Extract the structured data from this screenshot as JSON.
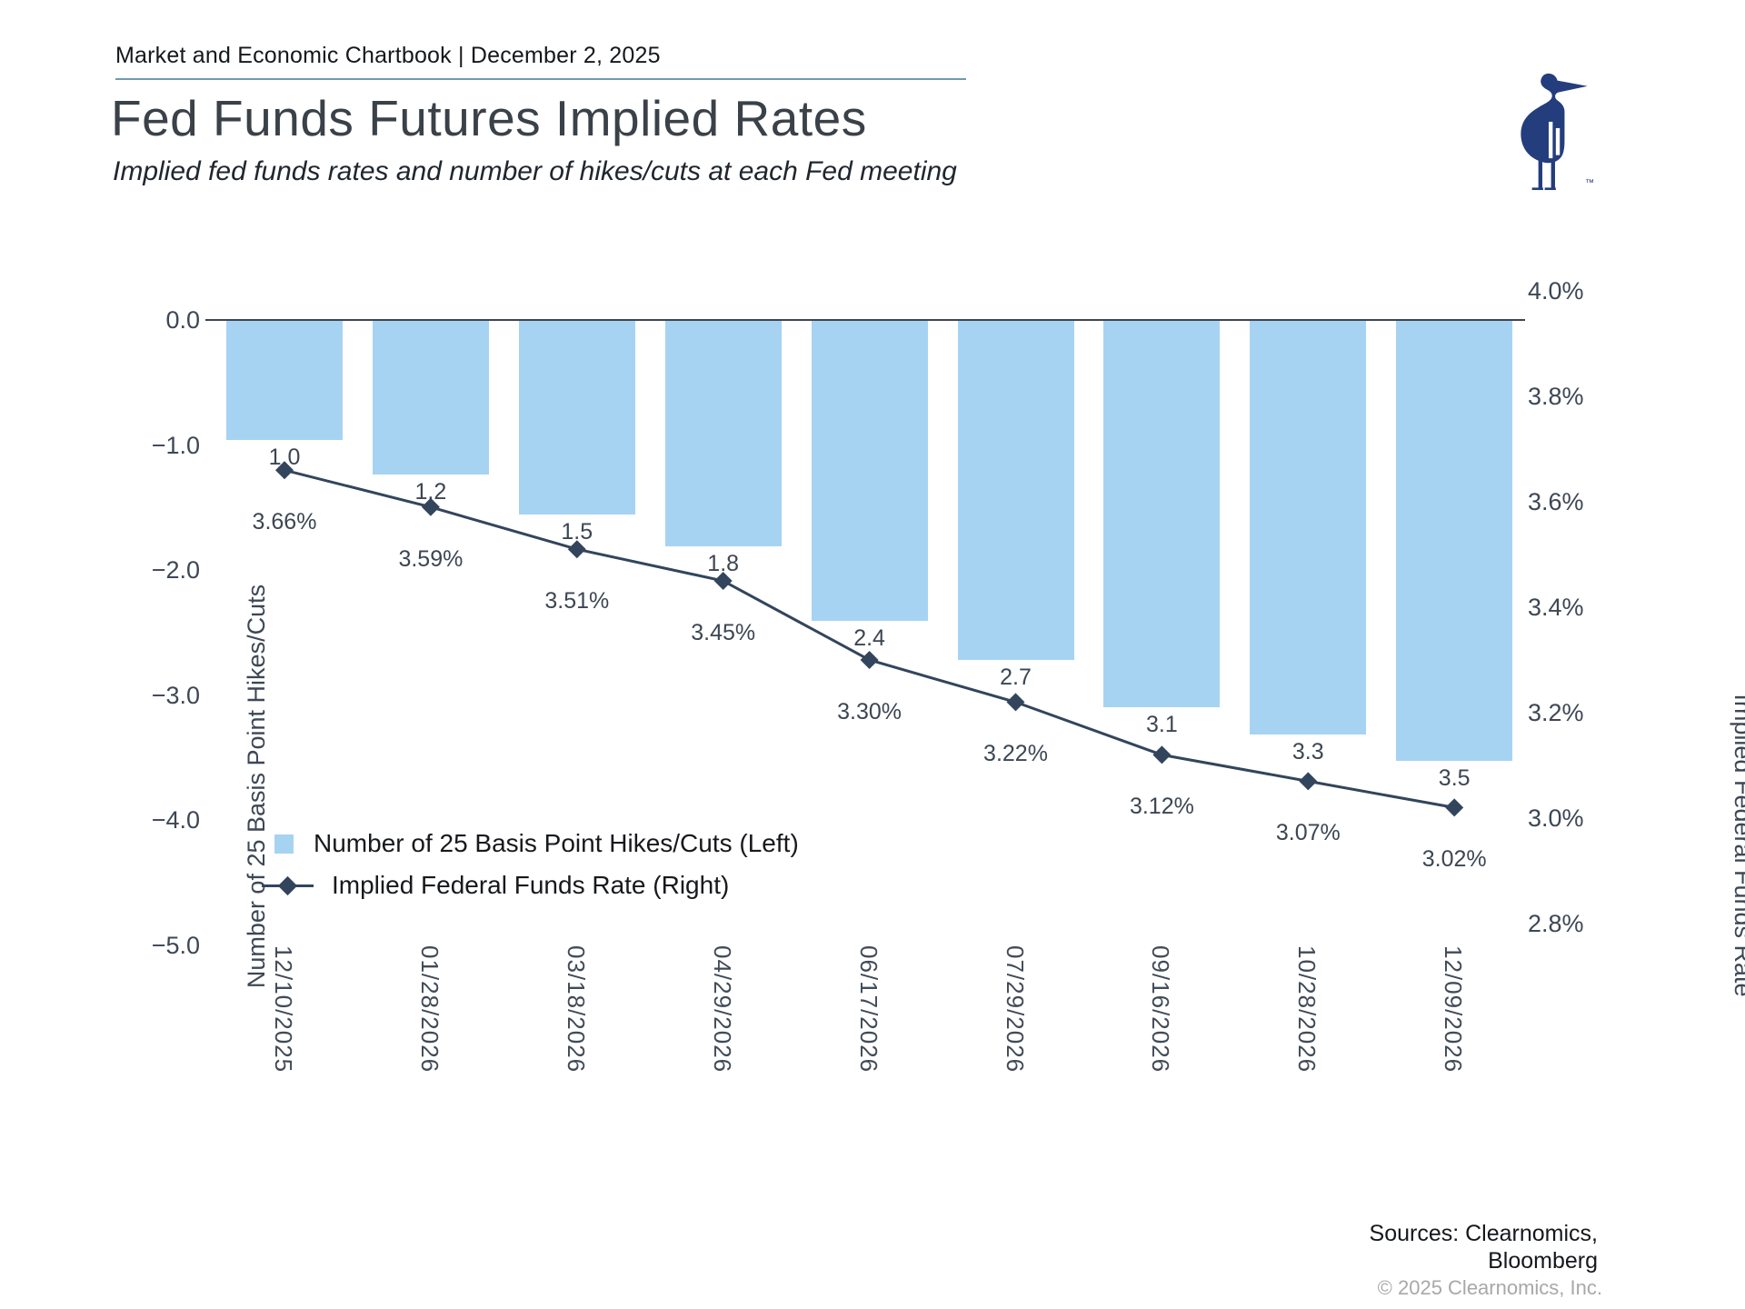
{
  "header": {
    "text": "Market and Economic Chartbook | December 2, 2025"
  },
  "title": "Fed Funds Futures Implied Rates",
  "subtitle": "Implied fed funds rates and number of hikes/cuts at each Fed meeting",
  "logo": {
    "trademark": "™"
  },
  "chart_data": {
    "type": "bar+line",
    "categories": [
      "12/10/2025",
      "01/28/2026",
      "03/18/2026",
      "04/29/2026",
      "06/17/2026",
      "07/29/2026",
      "09/16/2026",
      "10/28/2026",
      "12/09/2026"
    ],
    "series": [
      {
        "name": "Number of 25 Basis Point Hikes/Cuts (Left)",
        "type": "bar",
        "axis": "left",
        "values": [
          -0.95,
          -1.23,
          -1.55,
          -1.8,
          -2.4,
          -2.71,
          -3.09,
          -3.31,
          -3.52
        ],
        "value_labels": [
          "1.0",
          "1.2",
          "1.5",
          "1.8",
          "2.4",
          "2.7",
          "3.1",
          "3.3",
          "3.5"
        ]
      },
      {
        "name": "Implied Federal Funds Rate (Right)",
        "type": "line",
        "axis": "right",
        "values": [
          3.66,
          3.59,
          3.51,
          3.45,
          3.3,
          3.22,
          3.12,
          3.07,
          3.02
        ],
        "value_labels": [
          "3.66%",
          "3.59%",
          "3.51%",
          "3.45%",
          "3.30%",
          "3.22%",
          "3.12%",
          "3.07%",
          "3.02%"
        ]
      }
    ],
    "left_axis": {
      "label": "Number of 25 Basis Point Hikes/Cuts",
      "ticks": [
        "0.0",
        "−1.0",
        "−2.0",
        "−3.0",
        "−4.0",
        "−5.0"
      ],
      "max": 0,
      "min": -5
    },
    "right_axis": {
      "label": "Implied Federal Funds Rate",
      "ticks": [
        "4.0%",
        "3.8%",
        "3.6%",
        "3.4%",
        "3.2%",
        "3.0%",
        "2.8%"
      ],
      "max": 4.0,
      "min": 2.8
    },
    "legend_position": "lower-left",
    "grid": false
  },
  "footer": {
    "sources": [
      "Sources: Clearnomics,",
      "Bloomberg"
    ],
    "copyright": "© 2025 Clearnomics, Inc."
  },
  "colors": {
    "bar": "#a7d3f3",
    "line": "#32455c",
    "tick_text": "#3d4754",
    "title_text": "#3a4148",
    "logo": "#243d7d",
    "header_rule": "#6f9ab0",
    "copyright_text": "#a8a8a8"
  }
}
